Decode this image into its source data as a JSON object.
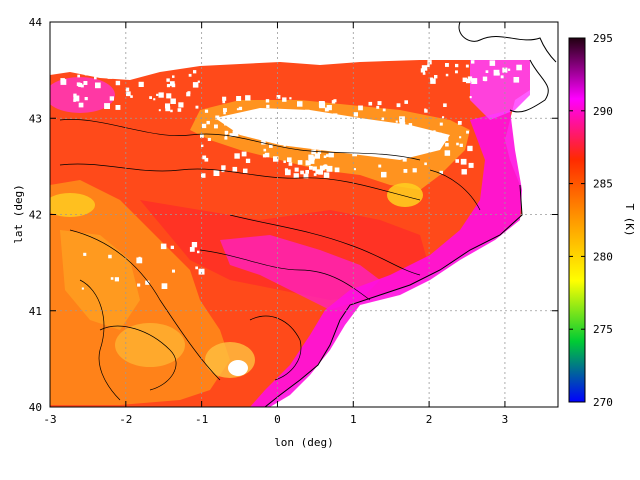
{
  "chart_data": {
    "type": "heatmap",
    "title": "",
    "xlabel": "lon (deg)",
    "ylabel": "lat (deg)",
    "xlim": [
      -3,
      3.7
    ],
    "ylim": [
      40,
      44
    ],
    "xticks": [
      -3,
      -2,
      -1,
      0,
      1,
      2,
      3
    ],
    "yticks": [
      40,
      41,
      42,
      43,
      44
    ],
    "grid": true,
    "colorbar": {
      "label": "T (K)",
      "range": [
        270,
        295
      ],
      "ticks": [
        270,
        275,
        280,
        285,
        290,
        295
      ],
      "colors": [
        "#0000ff",
        "#00cc33",
        "#ffff00",
        "#ff9900",
        "#ff2a00",
        "#ff00ff",
        "#220011"
      ]
    },
    "field_description_values": {
      "sea_mask": "white (no data)",
      "coastal_warm_zone": 291,
      "interior_typical": 286,
      "mountain_cold_min": 279
    }
  }
}
